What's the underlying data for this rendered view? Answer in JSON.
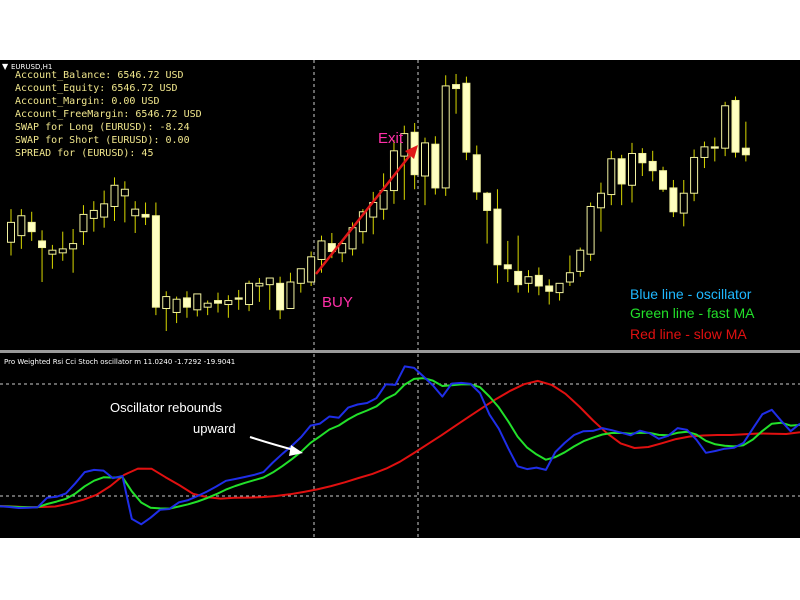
{
  "symbol_label": "EURUSD,H1",
  "account_info": [
    "Account_Balance: 6546.72 USD",
    "Account_Equity: 6546.72 USD",
    "Account_Margin: 0.00 USD",
    "Account_FreeMargin: 6546.72 USD",
    "SWAP for Long (EURUSD): -8.24",
    "SWAP for Short (EURUSD): 0.00",
    "SPREAD for (EURUSD): 45"
  ],
  "colors": {
    "background": "#000000",
    "bull_candle": "#ffffc0",
    "candle_outline": "#f2f2a0",
    "wick": "#d8d800",
    "info_text": "#f0e68c",
    "oscillator": "#1f2ee8",
    "fast_ma": "#22e02a",
    "slow_ma": "#e01010",
    "annotation_pink": "#ff2fa8",
    "arrow_red": "#e01818",
    "legend_blue": "#1fb8ff",
    "legend_green": "#22e02a",
    "legend_red": "#e01010"
  },
  "annotations": {
    "buy": "BUY",
    "exit": "Exit",
    "rebound_line1": "Oscillator rebounds",
    "rebound_line2": "upward"
  },
  "legend": {
    "blue": "Blue line - oscillator",
    "green": "Green line - fast MA",
    "red": "Red line - slow MA"
  },
  "indicator_title": "Pro Weighted Rsi Cci Stoch oscillator m 11.0240 -1.7292 -19.9041",
  "chart_data": [
    {
      "type": "candlestick",
      "series": [
        {
          "open": 3.5,
          "high": 6.0,
          "low": 2.5,
          "close": 5.0
        },
        {
          "open": 4.0,
          "high": 6.0,
          "low": 3.0,
          "close": 5.5
        },
        {
          "open": 5.0,
          "high": 5.8,
          "low": 3.6,
          "close": 4.3
        },
        {
          "open": 3.6,
          "high": 4.4,
          "low": 0.5,
          "close": 3.1
        },
        {
          "open": 2.6,
          "high": 3.3,
          "low": 1.5,
          "close": 2.9
        },
        {
          "open": 2.7,
          "high": 4.3,
          "low": 2.1,
          "close": 3.0
        },
        {
          "open": 3.0,
          "high": 4.5,
          "low": 1.2,
          "close": 3.4
        },
        {
          "open": 4.3,
          "high": 6.3,
          "low": 3.3,
          "close": 5.6
        },
        {
          "open": 5.3,
          "high": 6.6,
          "low": 4.3,
          "close": 5.9
        },
        {
          "open": 5.4,
          "high": 7.4,
          "low": 4.6,
          "close": 6.4
        },
        {
          "open": 6.2,
          "high": 8.4,
          "low": 5.1,
          "close": 7.8
        },
        {
          "open": 7.0,
          "high": 8.1,
          "low": 5.0,
          "close": 7.5
        },
        {
          "open": 5.5,
          "high": 6.6,
          "low": 4.2,
          "close": 6.0
        },
        {
          "open": 5.6,
          "high": 6.5,
          "low": 4.8,
          "close": 5.4
        },
        {
          "open": 5.5,
          "high": 6.5,
          "low": -2.0,
          "close": -1.4
        },
        {
          "open": -1.5,
          "high": -0.2,
          "low": -3.2,
          "close": -0.6
        },
        {
          "open": -1.8,
          "high": -0.6,
          "low": -2.6,
          "close": -0.8
        },
        {
          "open": -0.7,
          "high": -0.2,
          "low": -2.2,
          "close": -1.4
        },
        {
          "open": -1.6,
          "high": -0.4,
          "low": -2.1,
          "close": -0.4
        },
        {
          "open": -1.4,
          "high": -0.9,
          "low": -2.0,
          "close": -1.1
        },
        {
          "open": -0.9,
          "high": -0.3,
          "low": -1.8,
          "close": -1.1
        },
        {
          "open": -1.2,
          "high": -0.5,
          "low": -2.2,
          "close": -0.9
        },
        {
          "open": -0.7,
          "high": -0.1,
          "low": -1.6,
          "close": -0.8
        },
        {
          "open": -1.2,
          "high": 0.6,
          "low": -1.7,
          "close": 0.4
        },
        {
          "open": 0.2,
          "high": 0.8,
          "low": -1.0,
          "close": 0.4
        },
        {
          "open": 0.3,
          "high": 0.8,
          "low": -1.6,
          "close": 0.8
        },
        {
          "open": 0.4,
          "high": 0.9,
          "low": -2.3,
          "close": -1.6
        },
        {
          "open": -1.5,
          "high": 1.2,
          "low": -1.5,
          "close": 0.5
        },
        {
          "open": 0.4,
          "high": 1.3,
          "low": -0.3,
          "close": 1.5
        },
        {
          "open": 0.5,
          "high": 2.8,
          "low": 0.2,
          "close": 2.4
        },
        {
          "open": 2.2,
          "high": 4.0,
          "low": 1.2,
          "close": 3.6
        },
        {
          "open": 3.4,
          "high": 4.2,
          "low": 2.3,
          "close": 2.8
        },
        {
          "open": 2.7,
          "high": 3.6,
          "low": 2.0,
          "close": 3.4
        },
        {
          "open": 3.0,
          "high": 5.0,
          "low": 2.5,
          "close": 4.6
        },
        {
          "open": 4.3,
          "high": 6.0,
          "low": 3.4,
          "close": 5.8
        },
        {
          "open": 5.4,
          "high": 7.3,
          "low": 4.1,
          "close": 6.5
        },
        {
          "open": 6.0,
          "high": 8.7,
          "low": 5.2,
          "close": 7.4
        },
        {
          "open": 7.4,
          "high": 11.2,
          "low": 6.4,
          "close": 10.4
        },
        {
          "open": 10.0,
          "high": 12.3,
          "low": 6.7,
          "close": 11.7
        },
        {
          "open": 11.8,
          "high": 12.5,
          "low": 7.5,
          "close": 8.6
        },
        {
          "open": 8.5,
          "high": 11.4,
          "low": 6.3,
          "close": 11.0
        },
        {
          "open": 10.9,
          "high": 11.5,
          "low": 7.1,
          "close": 7.6
        },
        {
          "open": 7.6,
          "high": 16.1,
          "low": 7.0,
          "close": 15.3
        },
        {
          "open": 15.4,
          "high": 16.2,
          "low": 13.2,
          "close": 15.1
        },
        {
          "open": 15.5,
          "high": 16.0,
          "low": 9.7,
          "close": 10.3
        },
        {
          "open": 10.1,
          "high": 10.8,
          "low": 6.7,
          "close": 7.3
        },
        {
          "open": 7.2,
          "high": 7.3,
          "low": 3.4,
          "close": 5.9
        },
        {
          "open": 6.0,
          "high": 7.5,
          "low": 0.4,
          "close": 1.8
        },
        {
          "open": 1.8,
          "high": 3.6,
          "low": 0.5,
          "close": 1.5
        },
        {
          "open": 1.3,
          "high": 4.0,
          "low": -0.3,
          "close": 0.3
        },
        {
          "open": 0.4,
          "high": 1.4,
          "low": -0.3,
          "close": 0.9
        },
        {
          "open": 1.0,
          "high": 1.6,
          "low": -0.5,
          "close": 0.2
        },
        {
          "open": 0.2,
          "high": 0.7,
          "low": -1.2,
          "close": -0.2
        },
        {
          "open": -0.3,
          "high": 0.3,
          "low": -0.9,
          "close": 0.4
        },
        {
          "open": 0.5,
          "high": 2.5,
          "low": 0.2,
          "close": 1.2
        },
        {
          "open": 1.3,
          "high": 3.1,
          "low": 0.9,
          "close": 2.9
        },
        {
          "open": 2.6,
          "high": 6.5,
          "low": 2.1,
          "close": 6.2
        },
        {
          "open": 6.1,
          "high": 8.0,
          "low": 4.3,
          "close": 7.2
        },
        {
          "open": 7.1,
          "high": 10.4,
          "low": 6.3,
          "close": 9.8
        },
        {
          "open": 9.8,
          "high": 10.1,
          "low": 6.3,
          "close": 7.9
        },
        {
          "open": 7.8,
          "high": 11.0,
          "low": 6.5,
          "close": 10.2
        },
        {
          "open": 10.2,
          "high": 10.6,
          "low": 8.5,
          "close": 9.5
        },
        {
          "open": 9.6,
          "high": 10.4,
          "low": 8.1,
          "close": 8.9
        },
        {
          "open": 8.9,
          "high": 9.2,
          "low": 7.3,
          "close": 7.5
        },
        {
          "open": 7.6,
          "high": 8.2,
          "low": 5.4,
          "close": 5.8
        },
        {
          "open": 5.7,
          "high": 8.2,
          "low": 4.7,
          "close": 7.2
        },
        {
          "open": 7.2,
          "high": 10.5,
          "low": 6.6,
          "close": 9.9
        },
        {
          "open": 9.9,
          "high": 11.1,
          "low": 9.1,
          "close": 10.7
        },
        {
          "open": 10.7,
          "high": 11.4,
          "low": 9.6,
          "close": 10.6
        },
        {
          "open": 10.6,
          "high": 14.1,
          "low": 10.0,
          "close": 13.8
        },
        {
          "open": 14.2,
          "high": 14.5,
          "low": 9.9,
          "close": 10.3
        },
        {
          "open": 10.6,
          "high": 12.6,
          "low": 9.6,
          "close": 10.1
        }
      ]
    },
    {
      "type": "line",
      "series": [
        {
          "values": [
            -17.5,
            -17.8,
            -18.2,
            -18.1,
            -17.9,
            -14.2,
            -13.8,
            -12.5,
            -8.5,
            -4.1,
            -3.2,
            -3.5,
            -6.5,
            -5.6,
            -22.5,
            -24.6,
            -22.0,
            -18.9,
            -18.6,
            -16.0,
            -15.1,
            -13.5,
            -11.7,
            -9.7,
            -7.5,
            -6.8,
            -6.0,
            -5.2,
            -4.1,
            -0.3,
            3.1,
            6.2,
            9.7,
            14.2,
            15.0,
            17.8,
            17.3,
            21.3,
            22.5,
            23.1,
            25.0,
            30.5,
            30.2,
            37.5,
            36.9,
            33.5,
            30.0,
            25.6,
            30.7,
            31.0,
            30.6,
            27.0,
            18.6,
            13.0,
            5.3,
            -1.8,
            -2.9,
            -2.3,
            -3.2,
            3.8,
            7.4,
            10.5,
            12.0,
            12.1,
            13.2,
            12.4,
            11.4,
            10.4,
            12.2,
            11.2,
            9.0,
            10.2,
            13.2,
            12.5,
            8.6,
            3.5,
            4.2,
            5.1,
            5.5,
            7.4,
            13.1,
            18.7,
            20.4,
            16.1,
            12.0,
            15.0
          ]
        },
        {
          "values": [
            -17.4,
            -17.6,
            -17.9,
            -17.8,
            -17.6,
            -16.5,
            -15.0,
            -13.0,
            -9.6,
            -5.2,
            -2.7,
            -2.8,
            -6.1,
            -9.2,
            -12.6,
            -13.9,
            -14.5,
            -14.2,
            -14.1,
            -13.9,
            -13.5,
            -12.8,
            -11.9,
            -10.9,
            -9.6,
            -8.1,
            -6.4,
            -4.8,
            -2.7,
            0.0,
            3.4,
            6.9,
            10.4,
            14.1,
            17.7,
            21.3,
            24.8,
            27.9,
            30.5,
            31.8,
            30.2,
            26.7,
            21.7,
            16.2,
            11.2,
            7.2,
            5.4,
            5.8,
            7.3,
            8.9,
            9.9,
            10.3,
            10.5,
            10.5,
            10.8,
            11.1,
            11.0,
            10.9,
            11.6
          ]
        }
      ]
    }
  ]
}
